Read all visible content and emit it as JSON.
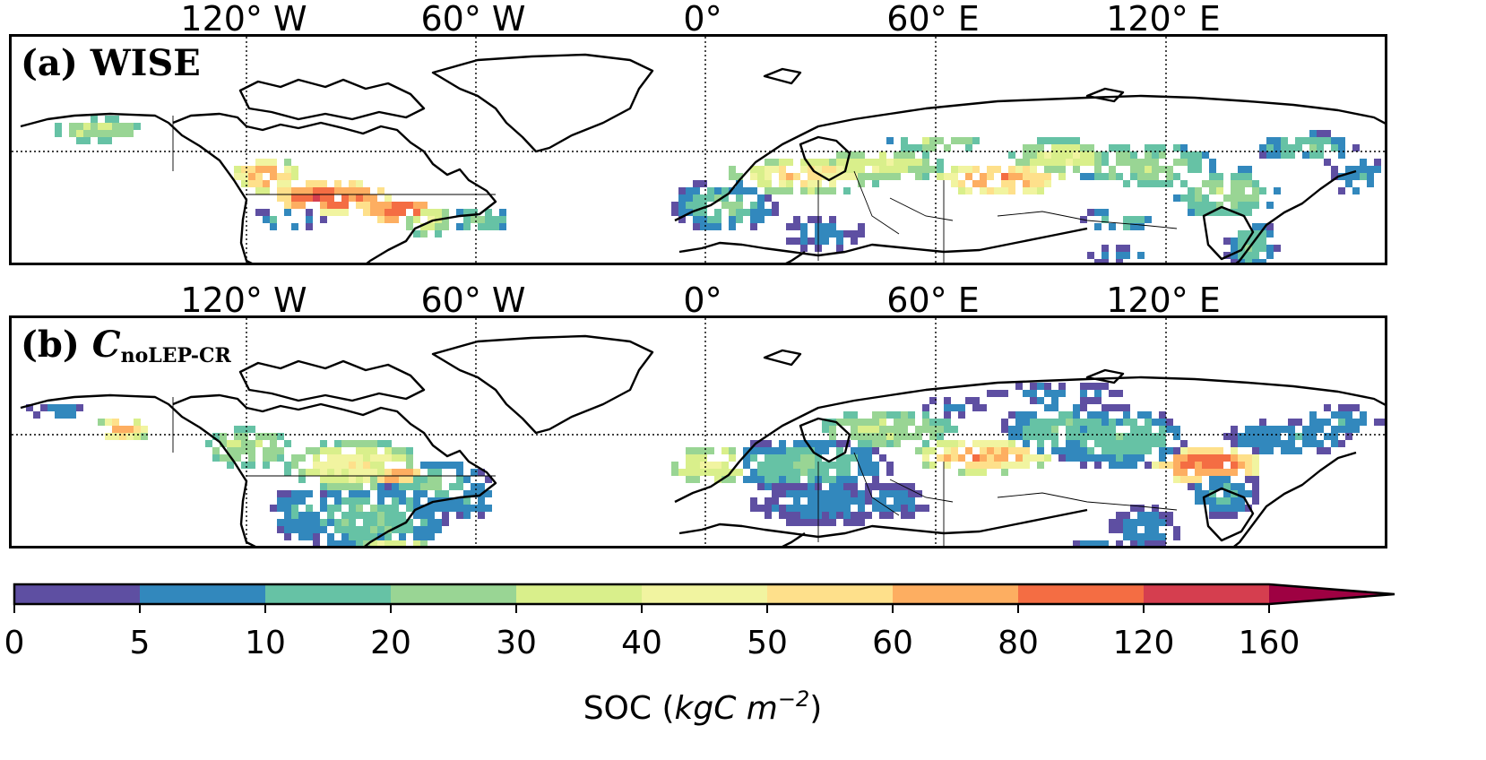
{
  "longitude_labels": [
    "120° W",
    "60° W",
    "0°",
    "60° E",
    "120° E"
  ],
  "panels": [
    {
      "id": "a",
      "title": "(a) WISE",
      "title_prefix": "(a)",
      "title_main": "WISE",
      "title_sub": ""
    },
    {
      "id": "b",
      "title": "(b) C noLEP-CR",
      "title_prefix": "(b)",
      "title_main": "C",
      "title_sub": "noLEP-CR"
    }
  ],
  "colorbar": {
    "label_text": "SOC (",
    "label_unit": "kgC m",
    "label_exp": "−2",
    "label_close": ")",
    "ticks": [
      "0",
      "5",
      "10",
      "20",
      "30",
      "40",
      "50",
      "60",
      "80",
      "120",
      "160"
    ],
    "colors": [
      "#5e4fa2",
      "#3288bd",
      "#66c2a5",
      "#99d594",
      "#d9ef8b",
      "#f1f4a0",
      "#fee08b",
      "#fdae61",
      "#f46d43",
      "#d53e4f",
      "#9e0142"
    ],
    "extend": "max"
  },
  "colors": {
    "land_outline": "#000000",
    "graticule": "#000000",
    "background": "#ffffff"
  }
}
